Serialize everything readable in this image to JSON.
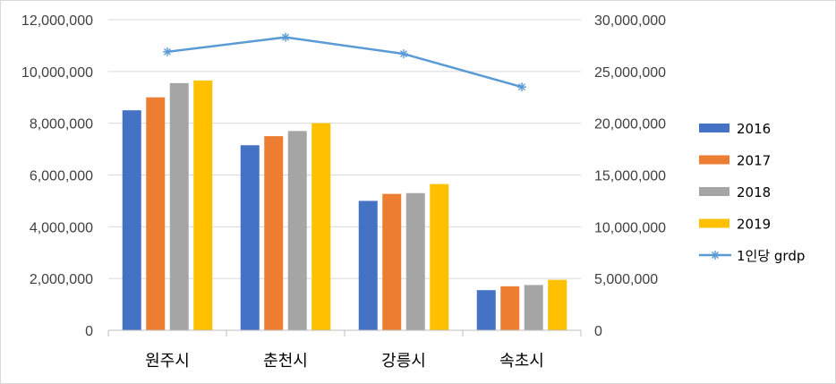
{
  "chart_data": {
    "type": "bar",
    "categories": [
      "원주시",
      "춘천시",
      "강릉시",
      "속초시"
    ],
    "series": [
      {
        "name": "2016",
        "type": "bar",
        "axis": "left",
        "color": "#4472C4",
        "values": [
          8500000,
          7150000,
          5000000,
          1550000
        ]
      },
      {
        "name": "2017",
        "type": "bar",
        "axis": "left",
        "color": "#ED7D31",
        "values": [
          9000000,
          7500000,
          5270000,
          1700000
        ]
      },
      {
        "name": "2018",
        "type": "bar",
        "axis": "left",
        "color": "#A5A5A5",
        "values": [
          9550000,
          7700000,
          5300000,
          1750000
        ]
      },
      {
        "name": "2019",
        "type": "bar",
        "axis": "left",
        "color": "#FFC000",
        "values": [
          9650000,
          8000000,
          5650000,
          1950000
        ]
      },
      {
        "name": "1인당 grdp",
        "type": "line",
        "axis": "right",
        "color": "#5B9BD5",
        "marker": "asterisk",
        "values": [
          26900000,
          28300000,
          26700000,
          23500000
        ]
      }
    ],
    "y_left": {
      "min": 0,
      "max": 12000000,
      "step": 2000000,
      "tick_labels": [
        "0",
        "2,000,000",
        "4,000,000",
        "6,000,000",
        "8,000,000",
        "10,000,000",
        "12,000,000"
      ]
    },
    "y_right": {
      "min": 0,
      "max": 30000000,
      "step": 5000000,
      "tick_labels": [
        "0",
        "5,000,000",
        "10,000,000",
        "15,000,000",
        "20,000,000",
        "25,000,000",
        "30,000,000"
      ]
    },
    "title": "",
    "xlabel": "",
    "ylabel": "",
    "grid": true,
    "legend_position": "right"
  }
}
